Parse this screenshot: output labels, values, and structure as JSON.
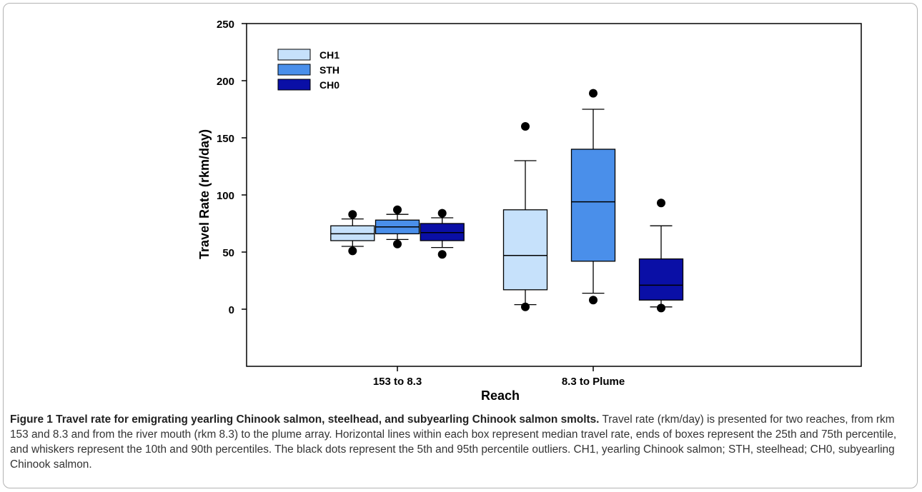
{
  "figure": {
    "caption_title": "Figure 1 Travel rate for emigrating yearling Chinook salmon, steelhead, and subyearling Chinook salmon smolts.",
    "caption_text": " Travel rate (rkm/day) is presented for two reaches, from rkm 153 and 8.3 and from the river mouth (rkm 8.3) to the plume array. Horizontal lines within each box represent median travel rate, ends of boxes represent the 25th and 75th percentile, and whiskers represent the 10th and 90th percentiles. The black dots represent the 5th and 95th percentile outliers. CH1, yearling Chinook salmon; STH, steelhead; CH0, subyearling Chinook salmon."
  },
  "chart_data": {
    "type": "box",
    "xlabel": "Reach",
    "ylabel": "Travel Rate (rkm/day)",
    "ylim": [
      -50,
      250
    ],
    "yticks": [
      0,
      50,
      100,
      150,
      200,
      250
    ],
    "categories": [
      "153 to 8.3",
      "8.3 to Plume"
    ],
    "legend_position": "top-left",
    "grid": false,
    "series": [
      {
        "name": "CH1",
        "color": "#c6e1fb",
        "boxes": [
          {
            "p5": 51,
            "p10": 55,
            "q1": 60,
            "median": 66,
            "q3": 73,
            "p90": 79,
            "p95": 83
          },
          {
            "p5": 2,
            "p10": 4,
            "q1": 17,
            "median": 47,
            "q3": 87,
            "p90": 130,
            "p95": 160
          }
        ]
      },
      {
        "name": "STH",
        "color": "#4a8fea",
        "boxes": [
          {
            "p5": 57,
            "p10": 61,
            "q1": 66,
            "median": 72,
            "q3": 78,
            "p90": 83,
            "p95": 87
          },
          {
            "p5": 8,
            "p10": 14,
            "q1": 42,
            "median": 94,
            "q3": 140,
            "p90": 175,
            "p95": 189
          }
        ]
      },
      {
        "name": "CH0",
        "color": "#0a0fa6",
        "boxes": [
          {
            "p5": 48,
            "p10": 54,
            "q1": 60,
            "median": 67,
            "q3": 75,
            "p90": 80,
            "p95": 84
          },
          {
            "p5": 1,
            "p10": 2,
            "q1": 8,
            "median": 21,
            "q3": 44,
            "p90": 73,
            "p95": 93
          }
        ]
      }
    ]
  }
}
